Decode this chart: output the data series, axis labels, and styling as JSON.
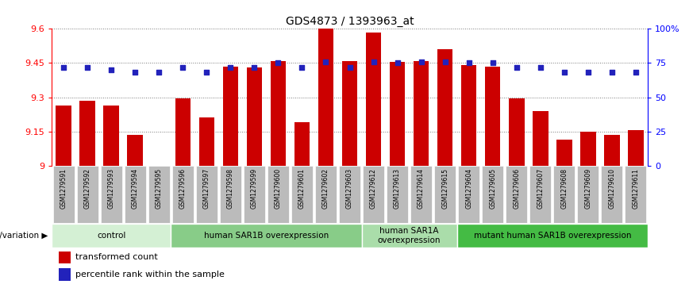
{
  "title": "GDS4873 / 1393963_at",
  "samples": [
    "GSM1279591",
    "GSM1279592",
    "GSM1279593",
    "GSM1279594",
    "GSM1279595",
    "GSM1279596",
    "GSM1279597",
    "GSM1279598",
    "GSM1279599",
    "GSM1279600",
    "GSM1279601",
    "GSM1279602",
    "GSM1279603",
    "GSM1279612",
    "GSM1279613",
    "GSM1279614",
    "GSM1279615",
    "GSM1279604",
    "GSM1279605",
    "GSM1279606",
    "GSM1279607",
    "GSM1279608",
    "GSM1279609",
    "GSM1279610",
    "GSM1279611"
  ],
  "bar_values": [
    9.265,
    9.285,
    9.265,
    9.135,
    9.0,
    9.295,
    9.21,
    9.435,
    9.43,
    9.46,
    9.19,
    9.6,
    9.46,
    9.585,
    9.455,
    9.46,
    9.51,
    9.44,
    9.435,
    9.295,
    9.24,
    9.115,
    9.15,
    9.135,
    9.155
  ],
  "dot_values": [
    72,
    72,
    70,
    68,
    68,
    72,
    68,
    72,
    72,
    75,
    72,
    76,
    72,
    76,
    75,
    76,
    76,
    75,
    75,
    72,
    72,
    68,
    68,
    68,
    68
  ],
  "ymin": 9.0,
  "ymax": 9.6,
  "yticks": [
    9.0,
    9.15,
    9.3,
    9.45,
    9.6
  ],
  "ytick_labels": [
    "9",
    "9.15",
    "9.3",
    "9.45",
    "9.6"
  ],
  "right_yticks": [
    0,
    25,
    50,
    75,
    100
  ],
  "right_ytick_labels": [
    "0",
    "25",
    "50",
    "75",
    "100%"
  ],
  "bar_color": "#cc0000",
  "dot_color": "#2222bb",
  "groups": [
    {
      "label": "control",
      "start": 0,
      "end": 5,
      "color": "#d4f0d4"
    },
    {
      "label": "human SAR1B overexpression",
      "start": 5,
      "end": 13,
      "color": "#88cc88"
    },
    {
      "label": "human SAR1A\noverexpression",
      "start": 13,
      "end": 17,
      "color": "#aaddaa"
    },
    {
      "label": "mutant human SAR1B overexpression",
      "start": 17,
      "end": 25,
      "color": "#44bb44"
    }
  ],
  "legend_labels": [
    "transformed count",
    "percentile rank within the sample"
  ],
  "genotype_label": "genotype/variation",
  "bg_color": "#ffffff",
  "xtick_bg": "#bbbbbb",
  "grid_color": "#777777"
}
